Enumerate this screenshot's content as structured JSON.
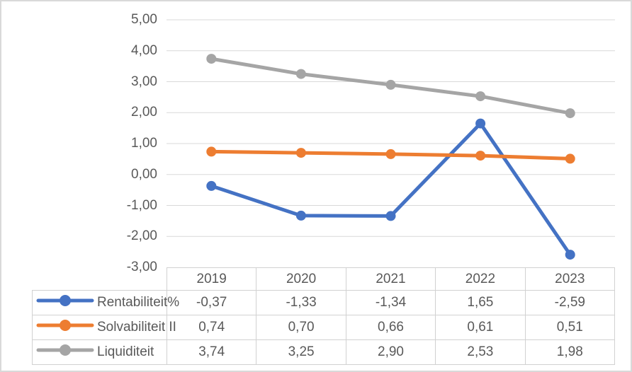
{
  "chart_data": {
    "type": "line",
    "title": "",
    "xlabel": "",
    "ylabel": "",
    "categories": [
      "2019",
      "2020",
      "2021",
      "2022",
      "2023"
    ],
    "series": [
      {
        "name": "Rentabiliteit%",
        "color": "#4472C4",
        "values": [
          -0.37,
          -1.33,
          -1.34,
          1.65,
          -2.59
        ],
        "labels": [
          "-0,37",
          "-1,33",
          "-1,34",
          "1,65",
          "-2,59"
        ]
      },
      {
        "name": "Solvabiliteit II",
        "color": "#ED7D31",
        "values": [
          0.74,
          0.7,
          0.66,
          0.61,
          0.51
        ],
        "labels": [
          "0,74",
          "0,70",
          "0,66",
          "0,61",
          "0,51"
        ]
      },
      {
        "name": "Liquiditeit",
        "color": "#A5A5A5",
        "values": [
          3.74,
          3.25,
          2.9,
          2.53,
          1.98
        ],
        "labels": [
          "3,74",
          "3,25",
          "2,90",
          "2,53",
          "1,98"
        ]
      }
    ],
    "y_ticks": [
      {
        "label": "5,00",
        "value": 5
      },
      {
        "label": "4,00",
        "value": 4
      },
      {
        "label": "3,00",
        "value": 3
      },
      {
        "label": "2,00",
        "value": 2
      },
      {
        "label": "1,00",
        "value": 1
      },
      {
        "label": "0,00",
        "value": 0
      },
      {
        "label": "-1,00",
        "value": -1
      },
      {
        "label": "-2,00",
        "value": -2
      },
      {
        "label": "-3,00",
        "value": -3
      }
    ],
    "ylim": [
      -3,
      5
    ],
    "grid": true,
    "gridline_color": "#d9d9d9",
    "legend_position": "table-left",
    "text_color": "#595959",
    "border_color": "#d1d1d1"
  }
}
